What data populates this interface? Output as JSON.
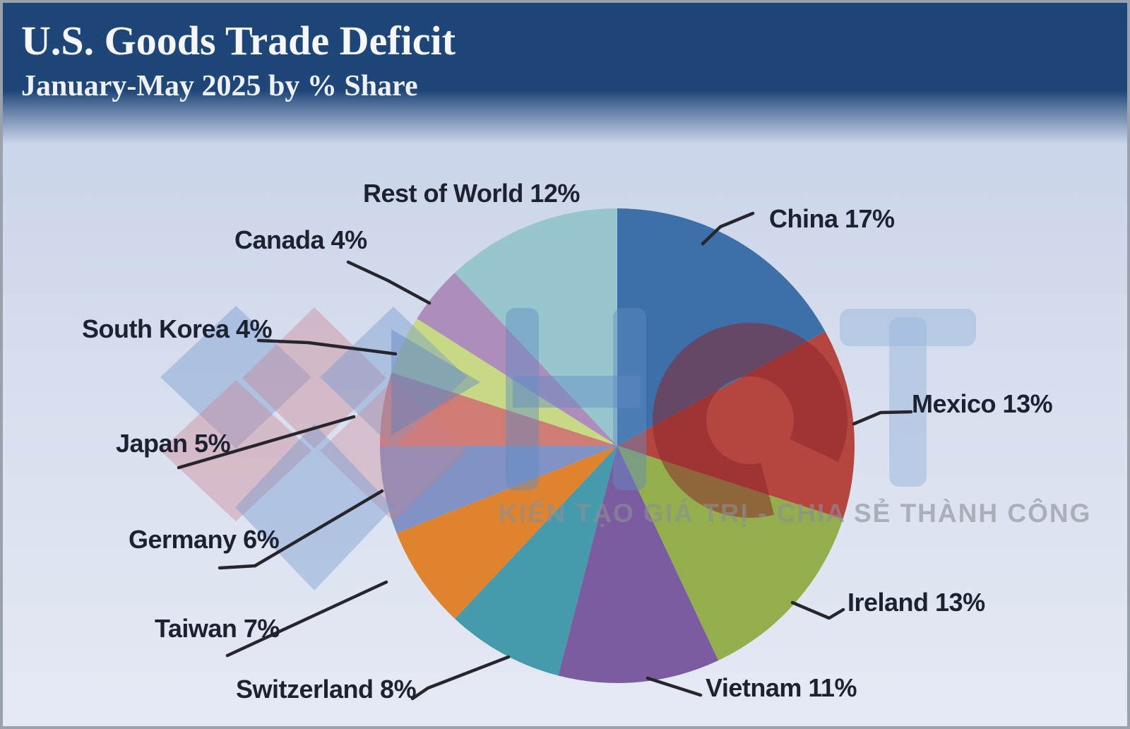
{
  "header": {
    "title": "U.S. Goods Trade Deficit",
    "subtitle": "January-May 2025 by % Share"
  },
  "chart_data": {
    "type": "pie",
    "title": "U.S. Goods Trade Deficit",
    "subtitle": "January-May 2025 by % Share",
    "unit": "%",
    "start_angle_deg": 0,
    "direction": "clockwise",
    "legend_position": "none",
    "label_style": "outside-with-leader-lines",
    "slices": [
      {
        "label": "China",
        "value": 17,
        "color": "#3d6fa8"
      },
      {
        "label": "Mexico",
        "value": 13,
        "color": "#b5463f"
      },
      {
        "label": "Ireland",
        "value": 13,
        "color": "#93ae4c"
      },
      {
        "label": "Vietnam",
        "value": 11,
        "color": "#7c5ca0"
      },
      {
        "label": "Switzerland",
        "value": 8,
        "color": "#459aab"
      },
      {
        "label": "Taiwan",
        "value": 7,
        "color": "#e0832f"
      },
      {
        "label": "Germany",
        "value": 6,
        "color": "#8093c4"
      },
      {
        "label": "Japan",
        "value": 5,
        "color": "#cf7d74"
      },
      {
        "label": "South Korea",
        "value": 4,
        "color": "#c8d986"
      },
      {
        "label": "Canada",
        "value": 4,
        "color": "#ad8dbb"
      },
      {
        "label": "Rest of World",
        "value": 12,
        "color": "#97c6ce"
      }
    ]
  },
  "watermark": {
    "brand": "HCT",
    "slogan": "KIẾN TẠO GIÁ TRỊ - CHIA SẺ THÀNH CÔNG"
  },
  "colors": {
    "header_navy": "#1e4577",
    "label_text": "#1d2230",
    "leader_line": "#26262c",
    "background_top": "#c5cfe7",
    "background_bottom": "#e5e9f4"
  }
}
